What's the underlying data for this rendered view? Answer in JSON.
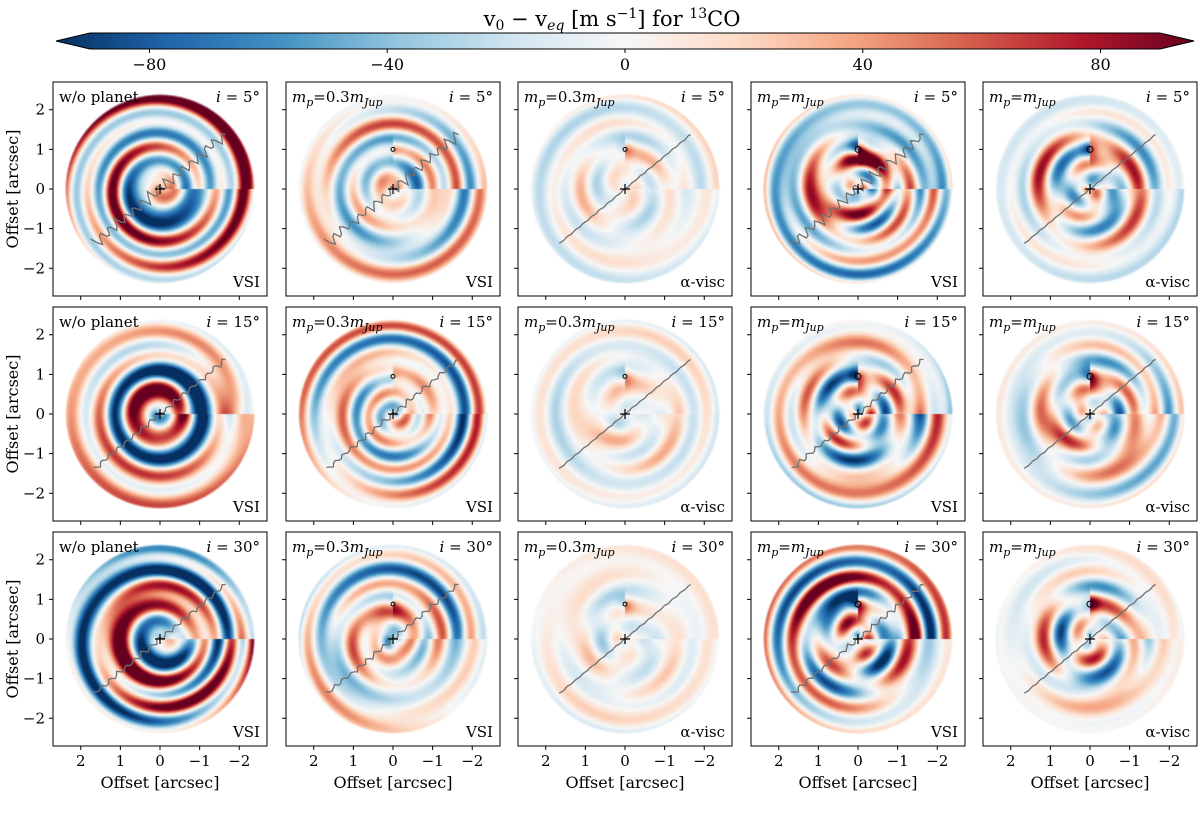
{
  "colorbar": {
    "title": "v",
    "title_sub": "0",
    "title_minus": " − v",
    "title_sub2": "eq",
    "title_units": " [m s",
    "title_exp": "−1",
    "title_end": "] for ",
    "title_iso": "13",
    "title_species": "CO",
    "ticks": [
      -80,
      -40,
      0,
      40,
      80
    ],
    "range": [
      -90,
      90
    ],
    "colormap": "RdBu_r",
    "colors": [
      "#053061",
      "#2166ac",
      "#4393c3",
      "#92c5de",
      "#d1e5f0",
      "#f7f7f7",
      "#fddbc7",
      "#f4a582",
      "#d6604d",
      "#b2182b",
      "#67001f"
    ]
  },
  "axes": {
    "xlabel": "Offset [arcsec]",
    "ylabel": "Offset [arcsec]",
    "xticks": [
      2,
      1,
      0,
      -1,
      -2
    ],
    "yticks": [
      2,
      1,
      0,
      -1,
      -2
    ],
    "xlim": [
      2.7,
      -2.7
    ],
    "ylim": [
      -2.7,
      2.7
    ],
    "disk_radius": 2.4
  },
  "chart_data": {
    "type": "heatmap",
    "rows": [
      {
        "inclination_label": "i = 5°",
        "planet_y": 1.0
      },
      {
        "inclination_label": "i = 15°",
        "planet_y": 0.95
      },
      {
        "inclination_label": "i = 30°",
        "planet_y": 0.88
      }
    ],
    "columns": [
      {
        "model": "w/o planet",
        "viscosity": "VSI",
        "planet": false,
        "amplitude": 0.95,
        "planet_strength": 0
      },
      {
        "model": "m_p = 0.3m_Jup",
        "viscosity": "VSI",
        "planet": true,
        "amplitude": 0.55,
        "planet_strength": 0.25
      },
      {
        "model": "m_p = 0.3m_Jup",
        "viscosity": "α-visc",
        "planet": true,
        "amplitude": 0.15,
        "planet_strength": 0.35
      },
      {
        "model": "m_p = m_Jup",
        "viscosity": "VSI",
        "planet": true,
        "amplitude": 0.7,
        "planet_strength": 0.85
      },
      {
        "model": "m_p = m_Jup",
        "viscosity": "α-visc",
        "planet": true,
        "amplitude": 0.3,
        "planet_strength": 0.8
      }
    ]
  }
}
